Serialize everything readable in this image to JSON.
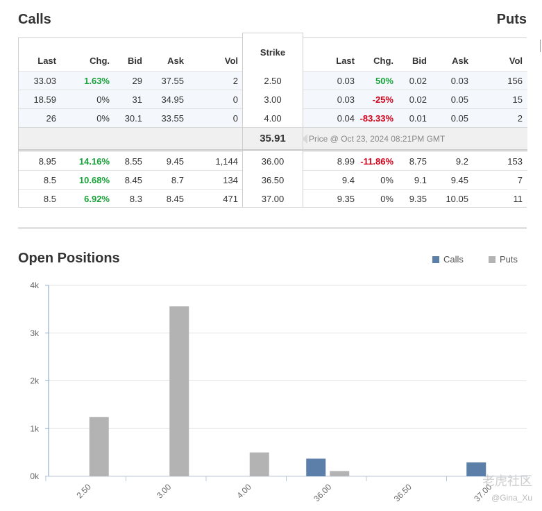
{
  "header": {
    "calls_title": "Calls",
    "puts_title": "Puts"
  },
  "chain": {
    "call_columns": [
      "Last",
      "Chg.",
      "Bid",
      "Ask",
      "Vol"
    ],
    "strike_column": "Strike",
    "put_columns": [
      "Last",
      "Chg.",
      "Bid",
      "Ask",
      "Vol"
    ],
    "rows_above": [
      {
        "strike": "2.50",
        "calls": {
          "last": "33.03",
          "chg": "1.63%",
          "bid": "29",
          "ask": "37.55",
          "vol": "2"
        },
        "puts": {
          "last": "0.03",
          "chg": "50%",
          "bid": "0.02",
          "ask": "0.03",
          "vol": "156"
        },
        "call_chg_dir": "pos",
        "put_chg_dir": "pos"
      },
      {
        "strike": "3.00",
        "calls": {
          "last": "18.59",
          "chg": "0%",
          "bid": "31",
          "ask": "34.95",
          "vol": "0"
        },
        "puts": {
          "last": "0.03",
          "chg": "-25%",
          "bid": "0.02",
          "ask": "0.05",
          "vol": "15"
        },
        "call_chg_dir": "flat",
        "put_chg_dir": "neg"
      },
      {
        "strike": "4.00",
        "calls": {
          "last": "26",
          "chg": "0%",
          "bid": "30.1",
          "ask": "33.55",
          "vol": "0"
        },
        "puts": {
          "last": "0.04",
          "chg": "-83.33%",
          "bid": "0.01",
          "ask": "0.05",
          "vol": "2"
        },
        "call_chg_dir": "flat",
        "put_chg_dir": "neg"
      }
    ],
    "price": {
      "value": "35.91",
      "note": "Price @ Oct 23, 2024 08:21PM GMT"
    },
    "rows_below": [
      {
        "strike": "36.00",
        "calls": {
          "last": "8.95",
          "chg": "14.16%",
          "bid": "8.55",
          "ask": "9.45",
          "vol": "1,144"
        },
        "puts": {
          "last": "8.99",
          "chg": "-11.86%",
          "bid": "8.75",
          "ask": "9.2",
          "vol": "153"
        },
        "call_chg_dir": "pos",
        "put_chg_dir": "neg"
      },
      {
        "strike": "36.50",
        "calls": {
          "last": "8.5",
          "chg": "10.68%",
          "bid": "8.45",
          "ask": "8.7",
          "vol": "134"
        },
        "puts": {
          "last": "9.4",
          "chg": "0%",
          "bid": "9.1",
          "ask": "9.45",
          "vol": "7"
        },
        "call_chg_dir": "pos",
        "put_chg_dir": "flat"
      },
      {
        "strike": "37.00",
        "calls": {
          "last": "8.5",
          "chg": "6.92%",
          "bid": "8.3",
          "ask": "8.45",
          "vol": "471"
        },
        "puts": {
          "last": "9.35",
          "chg": "0%",
          "bid": "9.35",
          "ask": "10.05",
          "vol": "11"
        },
        "call_chg_dir": "pos",
        "put_chg_dir": "flat"
      }
    ]
  },
  "open_positions": {
    "title": "Open Positions",
    "legend_calls": "Calls",
    "legend_puts": "Puts"
  },
  "colors": {
    "calls": "#5b7fa8",
    "puts": "#b3b3b3",
    "positive": "#1aa33a",
    "negative": "#d0021b"
  },
  "chart_data": {
    "type": "bar",
    "categories": [
      "2.50",
      "3.00",
      "4.00",
      "36.00",
      "36.50",
      "37.00"
    ],
    "series": [
      {
        "name": "Calls",
        "values": [
          0,
          0,
          0,
          370,
          0,
          290
        ]
      },
      {
        "name": "Puts",
        "values": [
          1240,
          3560,
          500,
          110,
          0,
          0
        ]
      }
    ],
    "yticks": [
      0,
      1000,
      2000,
      3000,
      4000
    ],
    "ytick_labels": [
      "0k",
      "1k",
      "2k",
      "3k",
      "4k"
    ],
    "ylim": [
      0,
      4000
    ],
    "legend": "top-right",
    "grid": true
  },
  "watermark": {
    "text": "老虎社区",
    "user": "@Gina_Xu"
  }
}
